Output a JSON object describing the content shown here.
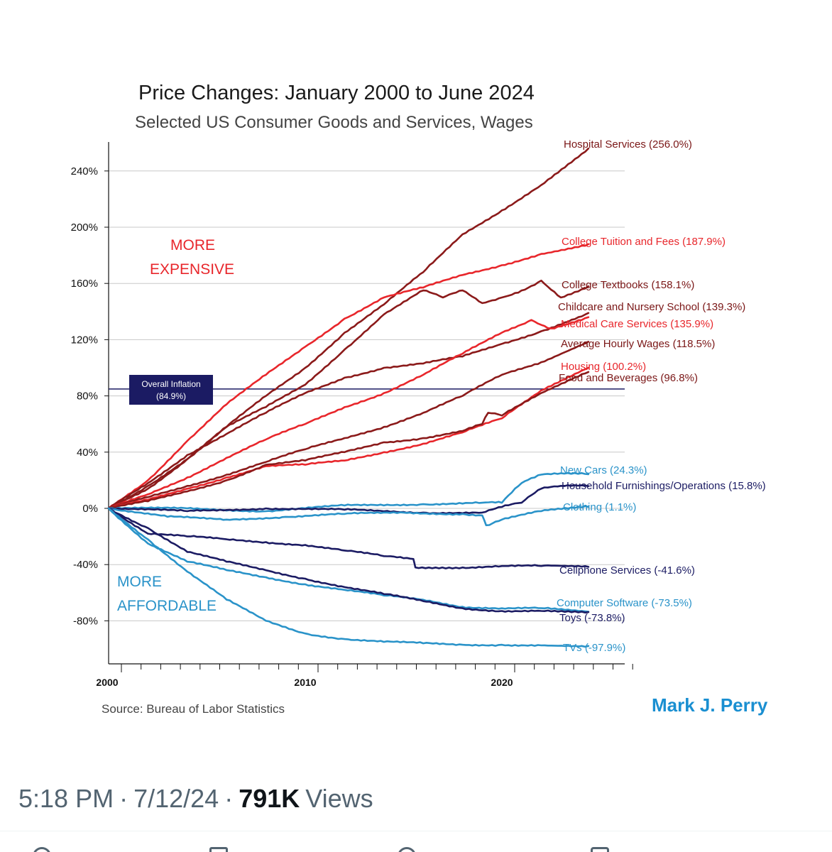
{
  "tweet": {
    "time": "5:18 PM",
    "date": "7/12/24",
    "separator": "·",
    "views_count": "791K",
    "views_label": "Views"
  },
  "chart_data": {
    "type": "line",
    "title": "Price Changes: January 2000 to June 2024",
    "subtitle": "Selected US Consumer Goods and Services, Wages",
    "ylim": [
      -110,
      260
    ],
    "xlim": [
      2000,
      2026
    ],
    "yticks": [
      "240%",
      "200%",
      "160%",
      "120%",
      "80%",
      "40%",
      "0%",
      "-40%",
      "-80%"
    ],
    "ytick_values": [
      240,
      200,
      160,
      120,
      80,
      40,
      0,
      -40,
      -80
    ],
    "xticks": [
      "2000",
      "2010",
      "2020"
    ],
    "xtick_values": [
      2000,
      2010,
      2020
    ],
    "grid": "horizontal",
    "region_labels": {
      "expensive_line1": "MORE",
      "expensive_line2": "EXPENSIVE",
      "affordable_line1": "MORE",
      "affordable_line2": "AFFORDABLE"
    },
    "reference_line": {
      "value": 84.9,
      "label_line1": "Overall Inflation",
      "label_line2": "(84.9%)"
    },
    "source": "Source: Bureau of Labor Statistics",
    "author": "Mark J. Perry",
    "colors": {
      "dark_red": "#8b1a1a",
      "red": "#e8262b",
      "navy": "#1b1b63",
      "light_blue": "#2a93c9",
      "grid": "#c8c8c8"
    },
    "series": [
      {
        "name": "Hospital Services (256.0%)",
        "color": "#8b1a1a",
        "x": [
          2000,
          2002,
          2004,
          2006,
          2008,
          2010,
          2012,
          2014,
          2016,
          2018,
          2020,
          2022,
          2024.4
        ],
        "y": [
          0,
          16,
          35,
          58,
          80,
          100,
          125,
          145,
          168,
          195,
          212,
          230,
          256
        ]
      },
      {
        "name": "College Tuition and Fees (187.9%)",
        "color": "#e8262b",
        "x": [
          2000,
          2002,
          2004,
          2006,
          2008,
          2010,
          2012,
          2014,
          2016,
          2018,
          2020,
          2022,
          2024.4
        ],
        "y": [
          0,
          20,
          48,
          74,
          95,
          115,
          135,
          150,
          157,
          166,
          173,
          181,
          188
        ]
      },
      {
        "name": "College Textbooks (158.1%)",
        "color": "#8b1a1a",
        "x": [
          2000,
          2002,
          2004,
          2006,
          2008,
          2010,
          2012,
          2014,
          2016,
          2017,
          2018,
          2019,
          2020,
          2021,
          2022,
          2023,
          2024.4
        ],
        "y": [
          0,
          14,
          35,
          58,
          72,
          88,
          113,
          138,
          155,
          150,
          155,
          146,
          150,
          155,
          162,
          150,
          158
        ]
      },
      {
        "name": "Childcare and Nursery School (139.3%)",
        "color": "#8b1a1a",
        "x": [
          2000,
          2002,
          2004,
          2006,
          2008,
          2010,
          2012,
          2014,
          2016,
          2018,
          2020,
          2022,
          2024.4
        ],
        "y": [
          0,
          18,
          38,
          53,
          68,
          82,
          93,
          100,
          103,
          108,
          117,
          126,
          139
        ]
      },
      {
        "name": "Medical Care Services (135.9%)",
        "color": "#e8262b",
        "x": [
          2000,
          2002,
          2004,
          2006,
          2008,
          2010,
          2012,
          2014,
          2016,
          2018,
          2020,
          2021.5,
          2022.5,
          2024.4
        ],
        "y": [
          0,
          10,
          22,
          36,
          49,
          60,
          72,
          82,
          95,
          110,
          125,
          134,
          128,
          136
        ]
      },
      {
        "name": "Average Hourly Wages (118.5%)",
        "color": "#8b1a1a",
        "x": [
          2000,
          2002,
          2004,
          2006,
          2008,
          2010,
          2012,
          2014,
          2016,
          2018,
          2020,
          2022,
          2024.4
        ],
        "y": [
          0,
          8,
          16,
          24,
          33,
          42,
          50,
          58,
          68,
          80,
          95,
          104,
          118.5
        ]
      },
      {
        "name": "Housing (100.2%)",
        "color": "#e8262b",
        "x": [
          2000,
          2002,
          2004,
          2006,
          2008,
          2010,
          2012,
          2014,
          2016,
          2018,
          2020,
          2022,
          2024.4
        ],
        "y": [
          0,
          6,
          14,
          22,
          30,
          31,
          34,
          40,
          46,
          54,
          64,
          84,
          100
        ]
      },
      {
        "name": "Food and Beverages (96.8%)",
        "color": "#8b1a1a",
        "x": [
          2000,
          2002,
          2004,
          2006,
          2008,
          2010,
          2012,
          2014,
          2016,
          2018,
          2019,
          2019.3,
          2020,
          2022,
          2024.4
        ],
        "y": [
          0,
          5,
          12,
          20,
          31,
          34,
          40,
          47,
          50,
          55,
          60,
          68,
          66,
          82,
          97
        ]
      },
      {
        "name": "New Cars (24.3%)",
        "color": "#2a93c9",
        "x": [
          2000,
          2004,
          2008,
          2012,
          2016,
          2019,
          2020,
          2021,
          2022,
          2023,
          2024.4
        ],
        "y": [
          0,
          0,
          -2,
          2,
          3,
          4,
          4,
          18,
          24,
          25,
          24.3
        ]
      },
      {
        "name": "Household Furnishings/Operations (15.8%)",
        "color": "#1b1b63",
        "x": [
          2000,
          2004,
          2008,
          2012,
          2016,
          2019,
          2020,
          2021,
          2022,
          2023,
          2024.4
        ],
        "y": [
          0,
          -2,
          0,
          -1,
          -3,
          -3,
          1,
          4,
          14,
          16,
          15.8
        ]
      },
      {
        "name": "Clothing (1.1%)",
        "color": "#2a93c9",
        "x": [
          2000,
          2003,
          2006,
          2009,
          2012,
          2015,
          2018,
          2019,
          2019.2,
          2020,
          2022,
          2024.4
        ],
        "y": [
          0,
          -6,
          -8,
          -6,
          -4,
          -3,
          -4,
          -5,
          -12,
          -8,
          -2,
          1.1
        ]
      },
      {
        "name": "Cellphone Services (-41.6%)",
        "color": "#1b1b63",
        "x": [
          2000,
          2002,
          2004,
          2006,
          2008,
          2010,
          2012,
          2014,
          2015.5,
          2015.6,
          2018,
          2020,
          2022,
          2024.4
        ],
        "y": [
          0,
          -18,
          -20,
          -22,
          -24,
          -26,
          -30,
          -34,
          -36,
          -42,
          -42,
          -41,
          -41,
          -41.6
        ]
      },
      {
        "name": "Computer Software (-73.5%)",
        "color": "#2a93c9",
        "x": [
          2000,
          2002,
          2004,
          2006,
          2008,
          2010,
          2012,
          2014,
          2016,
          2018,
          2020,
          2022,
          2024.4
        ],
        "y": [
          0,
          -25,
          -38,
          -44,
          -49,
          -54,
          -58,
          -62,
          -65,
          -70,
          -71,
          -71,
          -73.5
        ]
      },
      {
        "name": "Toys (-73.8%)",
        "color": "#1b1b63",
        "x": [
          2000,
          2002,
          2004,
          2006,
          2008,
          2010,
          2012,
          2014,
          2016,
          2018,
          2020,
          2022,
          2024.4
        ],
        "y": [
          0,
          -14,
          -31,
          -38,
          -44,
          -50,
          -56,
          -61,
          -66,
          -71,
          -73,
          -73,
          -73.8
        ]
      },
      {
        "name": "TVs (-97.9%)",
        "color": "#2a93c9",
        "x": [
          2000,
          2002,
          2004,
          2006,
          2008,
          2010,
          2012,
          2014,
          2016,
          2018,
          2020,
          2022,
          2024.4
        ],
        "y": [
          0,
          -22,
          -45,
          -65,
          -80,
          -89,
          -93,
          -95,
          -96,
          -97,
          -97,
          -97.5,
          -97.9
        ]
      }
    ]
  }
}
